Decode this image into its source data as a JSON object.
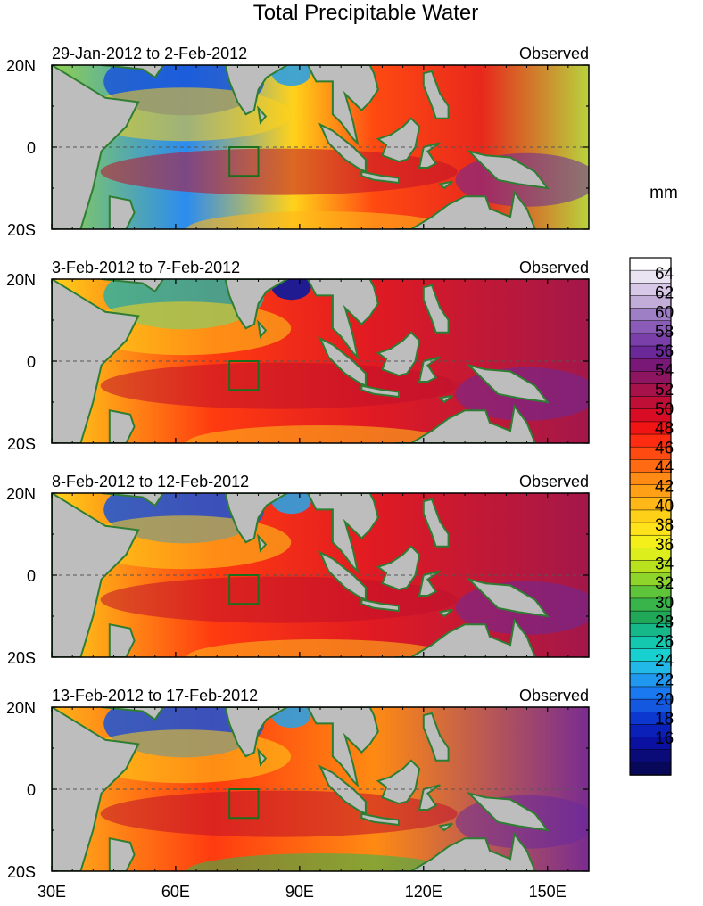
{
  "title": "Total Precipitable Water",
  "units_label": "mm",
  "panels": [
    {
      "period": "29-Jan-2012 to 2-Feb-2012",
      "tag": "Observed"
    },
    {
      "period": "3-Feb-2012 to 7-Feb-2012",
      "tag": "Observed"
    },
    {
      "period": "8-Feb-2012 to 12-Feb-2012",
      "tag": "Observed"
    },
    {
      "period": "13-Feb-2012 to 17-Feb-2012",
      "tag": "Observed"
    }
  ],
  "lat_labels": [
    "20N",
    "0",
    "20S"
  ],
  "lon_labels": [
    "30E",
    "60E",
    "90E",
    "120E",
    "150E"
  ],
  "colorbar": {
    "labels": [
      "64",
      "62",
      "60",
      "58",
      "56",
      "54",
      "52",
      "50",
      "48",
      "46",
      "44",
      "42",
      "40",
      "38",
      "36",
      "34",
      "32",
      "30",
      "28",
      "26",
      "24",
      "22",
      "20",
      "18",
      "16"
    ]
  },
  "colors": {
    "land": "#bdbdbd",
    "coast": "#2e7d32",
    "box": "#1b6e1b"
  }
}
